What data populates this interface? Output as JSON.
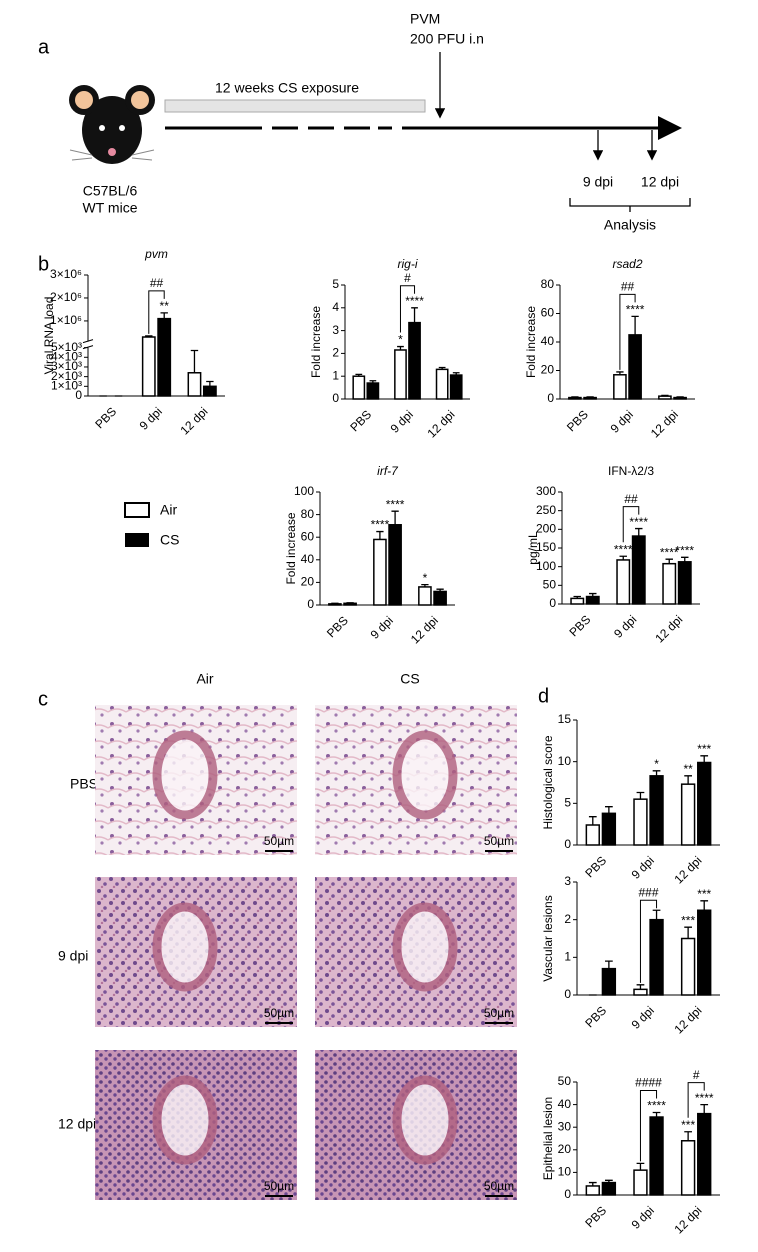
{
  "panel_a": {
    "label": "a",
    "virus": "PVM",
    "dose": "200 PFU i.n",
    "exposure": "12 weeks CS exposure",
    "strain": "C57BL/6",
    "mice": "WT mice",
    "timepoints": [
      "9 dpi",
      "12 dpi"
    ],
    "analysis": "Analysis"
  },
  "panel_b_label": "b",
  "chart_data": [
    {
      "type": "bar",
      "title": "pvm",
      "title_italic": true,
      "ylabel": "Viral RNA load",
      "categories": [
        "PBS",
        "9 dpi",
        "12 dpi"
      ],
      "y_segments": [
        {
          "ylim": [
            0,
            5000
          ],
          "yticks": [
            0,
            {
              "value": 1000,
              "label": "1×10³"
            },
            {
              "value": 2000,
              "label": "2×10³"
            },
            {
              "value": 3000,
              "label": "3×10³"
            },
            {
              "value": 4000,
              "label": "4×10³"
            },
            {
              "value": 5000,
              "label": "5×10³"
            }
          ]
        },
        {
          "ylim": [
            100000,
            3000000
          ],
          "yticks": [
            {
              "value": 1000000,
              "label": "1×10⁶"
            },
            {
              "value": 2000000,
              "label": "2×10⁶"
            },
            {
              "value": 3000000,
              "label": "3×10⁶"
            }
          ]
        }
      ],
      "series": [
        {
          "name": "Air",
          "color": "#ffffff",
          "values": [
            0,
            300000,
            2400
          ],
          "errors": [
            0,
            50000,
            2300
          ],
          "significance": [
            null,
            null,
            null
          ]
        },
        {
          "name": "CS",
          "color": "#000000",
          "values": [
            0,
            1100000,
            1000
          ],
          "errors": [
            0,
            250000,
            500
          ],
          "significance": [
            null,
            "**",
            null
          ]
        }
      ],
      "brackets": [
        null,
        "##",
        null
      ]
    },
    {
      "type": "bar",
      "title": "rig-i",
      "title_italic": true,
      "ylabel": "Fold increase",
      "categories": [
        "PBS",
        "9 dpi",
        "12 dpi"
      ],
      "ylim": [
        0,
        5
      ],
      "yticks": [
        0,
        1,
        2,
        3,
        4,
        5
      ],
      "series": [
        {
          "name": "Air",
          "color": "#ffffff",
          "values": [
            1.0,
            2.15,
            1.3
          ],
          "errors": [
            0.08,
            0.15,
            0.08
          ],
          "significance": [
            null,
            "*",
            null
          ]
        },
        {
          "name": "CS",
          "color": "#000000",
          "values": [
            0.7,
            3.35,
            1.05
          ],
          "errors": [
            0.1,
            0.65,
            0.1
          ],
          "significance": [
            null,
            "****",
            null
          ]
        }
      ],
      "brackets": [
        null,
        "#",
        null
      ]
    },
    {
      "type": "bar",
      "title": "rsad2",
      "title_italic": true,
      "ylabel": "Fold increase",
      "categories": [
        "PBS",
        "9 dpi",
        "12 dpi"
      ],
      "ylim": [
        0,
        80
      ],
      "yticks": [
        0,
        20,
        40,
        60,
        80
      ],
      "series": [
        {
          "name": "Air",
          "color": "#ffffff",
          "values": [
            1,
            17,
            2
          ],
          "errors": [
            0.5,
            2,
            0.5
          ],
          "significance": [
            null,
            null,
            null
          ]
        },
        {
          "name": "CS",
          "color": "#000000",
          "values": [
            1,
            45,
            1
          ],
          "errors": [
            0.5,
            13,
            0.5
          ],
          "significance": [
            null,
            "****",
            null
          ]
        }
      ],
      "brackets": [
        null,
        "##",
        null
      ]
    },
    {
      "type": "bar",
      "title": "irf-7",
      "title_italic": true,
      "ylabel": "Fold increase",
      "categories": [
        "PBS",
        "9 dpi",
        "12 dpi"
      ],
      "ylim": [
        0,
        100
      ],
      "yticks": [
        0,
        20,
        40,
        60,
        80,
        100
      ],
      "series": [
        {
          "name": "Air",
          "color": "#ffffff",
          "values": [
            1,
            58,
            16
          ],
          "errors": [
            0.5,
            7,
            2
          ],
          "significance": [
            null,
            "****",
            "*"
          ]
        },
        {
          "name": "CS",
          "color": "#000000",
          "values": [
            1.5,
            71,
            12
          ],
          "errors": [
            0.5,
            12,
            2
          ],
          "significance": [
            null,
            "****",
            null
          ]
        }
      ],
      "brackets": [
        null,
        null,
        null
      ]
    },
    {
      "type": "bar",
      "title": "IFN-λ2/3",
      "title_italic": false,
      "ylabel": "pg/mL",
      "categories": [
        "PBS",
        "9 dpi",
        "12 dpi"
      ],
      "ylim": [
        0,
        300
      ],
      "yticks": [
        0,
        50,
        100,
        150,
        200,
        250,
        300
      ],
      "series": [
        {
          "name": "Air",
          "color": "#ffffff",
          "values": [
            15,
            118,
            108
          ],
          "errors": [
            5,
            10,
            12
          ],
          "significance": [
            null,
            "****",
            "****"
          ]
        },
        {
          "name": "CS",
          "color": "#000000",
          "values": [
            20,
            182,
            113
          ],
          "errors": [
            8,
            20,
            12
          ],
          "significance": [
            null,
            "****",
            "****"
          ]
        }
      ],
      "brackets": [
        null,
        "##",
        null
      ]
    },
    {
      "type": "bar",
      "ylabel": "Histological score",
      "categories": [
        "PBS",
        "9 dpi",
        "12 dpi"
      ],
      "ylim": [
        0,
        15
      ],
      "yticks": [
        0,
        5,
        10,
        15
      ],
      "series": [
        {
          "name": "Air",
          "color": "#ffffff",
          "values": [
            2.4,
            5.5,
            7.3
          ],
          "errors": [
            1,
            0.8,
            1
          ],
          "significance": [
            null,
            null,
            "**"
          ]
        },
        {
          "name": "CS",
          "color": "#000000",
          "values": [
            3.8,
            8.3,
            9.9
          ],
          "errors": [
            0.8,
            0.6,
            0.8
          ],
          "significance": [
            null,
            "*",
            "***"
          ]
        }
      ],
      "brackets": [
        null,
        null,
        null
      ]
    },
    {
      "type": "bar",
      "ylabel": "Vascular lesions",
      "categories": [
        "PBS",
        "9 dpi",
        "12 dpi"
      ],
      "ylim": [
        0,
        3
      ],
      "yticks": [
        0,
        1,
        2,
        3
      ],
      "series": [
        {
          "name": "Air",
          "color": "#ffffff",
          "values": [
            0,
            0.15,
            1.5
          ],
          "errors": [
            0,
            0.12,
            0.3
          ],
          "significance": [
            null,
            null,
            "***"
          ]
        },
        {
          "name": "CS",
          "color": "#000000",
          "values": [
            0.7,
            2.0,
            2.25
          ],
          "errors": [
            0.2,
            0.25,
            0.25
          ],
          "significance": [
            null,
            null,
            "***"
          ]
        }
      ],
      "brackets": [
        null,
        "###",
        null
      ]
    },
    {
      "type": "bar",
      "ylabel": "Epithelial lesion",
      "categories": [
        "PBS",
        "9 dpi",
        "12 dpi"
      ],
      "ylim": [
        0,
        50
      ],
      "yticks": [
        0,
        10,
        20,
        30,
        40,
        50
      ],
      "series": [
        {
          "name": "Air",
          "color": "#ffffff",
          "values": [
            4,
            11,
            24
          ],
          "errors": [
            1.5,
            3,
            4
          ],
          "significance": [
            null,
            null,
            "***"
          ]
        },
        {
          "name": "CS",
          "color": "#000000",
          "values": [
            5.5,
            34.5,
            36
          ],
          "errors": [
            1,
            2,
            4
          ],
          "significance": [
            null,
            "****",
            "****"
          ]
        }
      ],
      "brackets": [
        null,
        "####",
        "#"
      ]
    }
  ],
  "panel_c": {
    "label": "c",
    "columns": [
      "Air",
      "CS"
    ],
    "rows": [
      "PBS",
      "9 dpi",
      "12 dpi"
    ],
    "scale_bars": [
      "50µm",
      "50µm",
      "50µm",
      "50µm",
      "50µm",
      "50µm"
    ]
  },
  "panel_d_label": "d"
}
